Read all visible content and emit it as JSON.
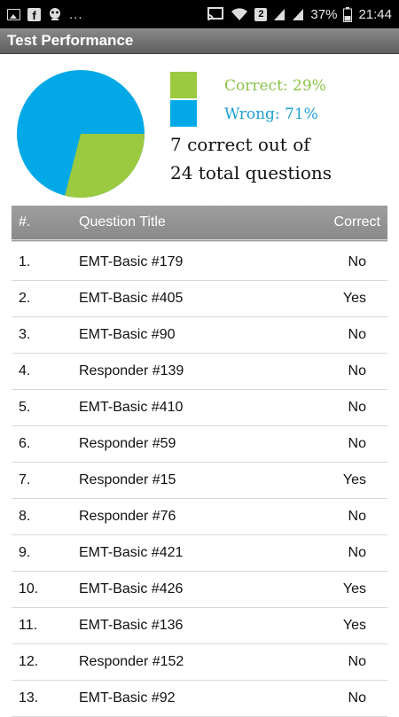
{
  "status_bar": {
    "battery": "37%",
    "time": "21:44",
    "notification_dots": "...",
    "sim_badge": "2",
    "icons": [
      "gallery-icon",
      "facebook-icon",
      "robot-icon",
      "cast-icon",
      "wifi-icon",
      "signal-icon",
      "signal-icon",
      "battery-icon"
    ]
  },
  "app_bar": {
    "title": "Test Performance"
  },
  "summary": {
    "correct_label": "Correct: 29%",
    "wrong_label": "Wrong: 71%",
    "line1": "7 correct out of",
    "line2": "24 total questions",
    "correct_fraction": 0.29,
    "colors": {
      "correct": "#9bc93f",
      "wrong": "#03a9e7",
      "correct_text": "#8bc34a",
      "wrong_text": "#1e9fd6"
    }
  },
  "table": {
    "headers": {
      "num": "#.",
      "title": "Question Title",
      "correct": "Correct"
    },
    "rows": [
      {
        "num": "1.",
        "title": "EMT-Basic #179",
        "correct": "No"
      },
      {
        "num": "2.",
        "title": "EMT-Basic #405",
        "correct": "Yes"
      },
      {
        "num": "3.",
        "title": "EMT-Basic #90",
        "correct": "No"
      },
      {
        "num": "4.",
        "title": "Responder #139",
        "correct": "No"
      },
      {
        "num": "5.",
        "title": "EMT-Basic #410",
        "correct": "No"
      },
      {
        "num": "6.",
        "title": "Responder #59",
        "correct": "No"
      },
      {
        "num": "7.",
        "title": "Responder #15",
        "correct": "Yes"
      },
      {
        "num": "8.",
        "title": "Responder #76",
        "correct": "No"
      },
      {
        "num": "9.",
        "title": "EMT-Basic #421",
        "correct": "No"
      },
      {
        "num": "10.",
        "title": "EMT-Basic #426",
        "correct": "Yes"
      },
      {
        "num": "11.",
        "title": "EMT-Basic #136",
        "correct": "Yes"
      },
      {
        "num": "12.",
        "title": "Responder #152",
        "correct": "No"
      },
      {
        "num": "13.",
        "title": "EMT-Basic #92",
        "correct": "No"
      }
    ]
  }
}
